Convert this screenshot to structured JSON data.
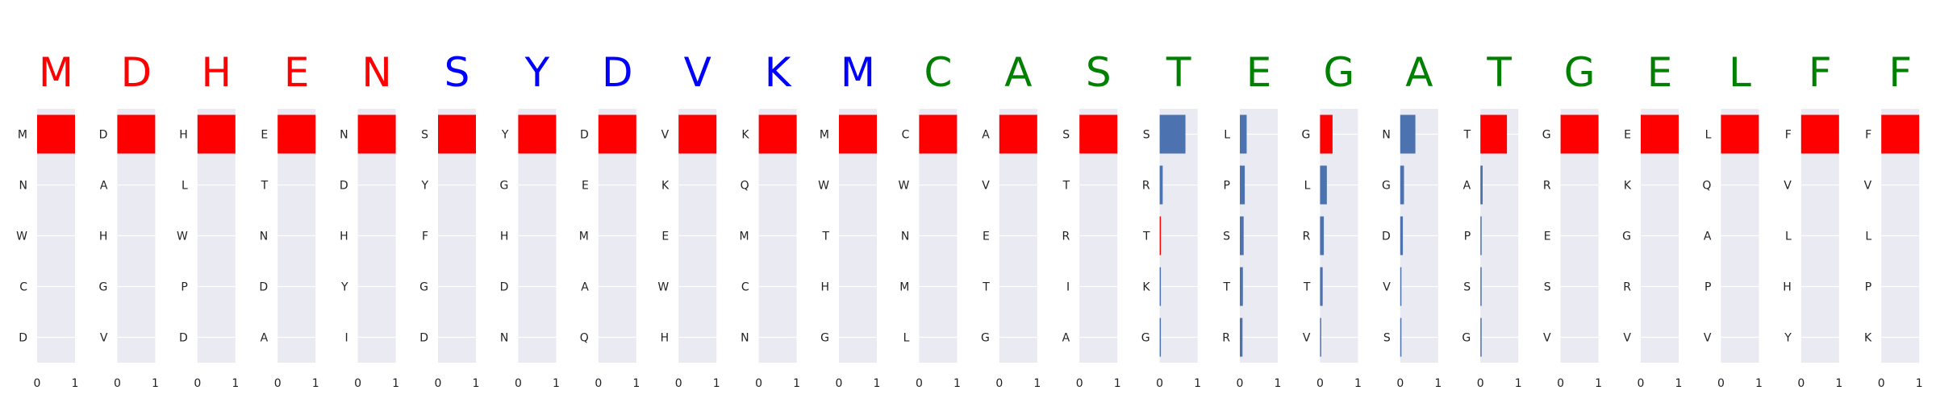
{
  "colors": {
    "panel_bg": "#eaeaf2",
    "grid": "#ffffff",
    "selected_bar": "#ff0000",
    "other_bar": "#4c72b0",
    "group_red": "#ff0000",
    "group_blue": "#0000ff",
    "group_green": "#008000"
  },
  "chart_data": {
    "type": "bar",
    "orientation": "horizontal",
    "xlim": [
      0,
      1
    ],
    "x_ticks": [
      "0",
      "1"
    ],
    "grid": true,
    "panels": [
      {
        "residue": "M",
        "color": "#ff0000",
        "candidates": [
          "M",
          "N",
          "W",
          "C",
          "D"
        ],
        "values": [
          1.0,
          0,
          0,
          0,
          0
        ],
        "selected": [
          true,
          false,
          false,
          false,
          false
        ]
      },
      {
        "residue": "D",
        "color": "#ff0000",
        "candidates": [
          "D",
          "A",
          "H",
          "G",
          "V"
        ],
        "values": [
          1.0,
          0,
          0,
          0,
          0
        ],
        "selected": [
          true,
          false,
          false,
          false,
          false
        ]
      },
      {
        "residue": "H",
        "color": "#ff0000",
        "candidates": [
          "H",
          "L",
          "W",
          "P",
          "D"
        ],
        "values": [
          1.0,
          0,
          0,
          0,
          0
        ],
        "selected": [
          true,
          false,
          false,
          false,
          false
        ]
      },
      {
        "residue": "E",
        "color": "#ff0000",
        "candidates": [
          "E",
          "T",
          "N",
          "D",
          "A"
        ],
        "values": [
          1.0,
          0,
          0,
          0,
          0
        ],
        "selected": [
          true,
          false,
          false,
          false,
          false
        ]
      },
      {
        "residue": "N",
        "color": "#ff0000",
        "candidates": [
          "N",
          "D",
          "H",
          "Y",
          "I"
        ],
        "values": [
          1.0,
          0,
          0,
          0,
          0
        ],
        "selected": [
          true,
          false,
          false,
          false,
          false
        ]
      },
      {
        "residue": "S",
        "color": "#0000ff",
        "candidates": [
          "S",
          "Y",
          "F",
          "G",
          "D"
        ],
        "values": [
          1.0,
          0,
          0,
          0,
          0
        ],
        "selected": [
          true,
          false,
          false,
          false,
          false
        ]
      },
      {
        "residue": "Y",
        "color": "#0000ff",
        "candidates": [
          "Y",
          "G",
          "H",
          "D",
          "N"
        ],
        "values": [
          1.0,
          0,
          0,
          0,
          0
        ],
        "selected": [
          true,
          false,
          false,
          false,
          false
        ]
      },
      {
        "residue": "D",
        "color": "#0000ff",
        "candidates": [
          "D",
          "E",
          "M",
          "A",
          "Q"
        ],
        "values": [
          1.0,
          0,
          0,
          0,
          0
        ],
        "selected": [
          true,
          false,
          false,
          false,
          false
        ]
      },
      {
        "residue": "V",
        "color": "#0000ff",
        "candidates": [
          "V",
          "K",
          "E",
          "W",
          "H"
        ],
        "values": [
          1.0,
          0,
          0,
          0,
          0
        ],
        "selected": [
          true,
          false,
          false,
          false,
          false
        ]
      },
      {
        "residue": "K",
        "color": "#0000ff",
        "candidates": [
          "K",
          "Q",
          "M",
          "C",
          "N"
        ],
        "values": [
          1.0,
          0,
          0,
          0,
          0
        ],
        "selected": [
          true,
          false,
          false,
          false,
          false
        ]
      },
      {
        "residue": "M",
        "color": "#0000ff",
        "candidates": [
          "M",
          "W",
          "T",
          "H",
          "G"
        ],
        "values": [
          1.0,
          0,
          0,
          0,
          0
        ],
        "selected": [
          true,
          false,
          false,
          false,
          false
        ]
      },
      {
        "residue": "C",
        "color": "#008000",
        "candidates": [
          "C",
          "W",
          "N",
          "M",
          "L"
        ],
        "values": [
          1.0,
          0,
          0,
          0,
          0
        ],
        "selected": [
          true,
          false,
          false,
          false,
          false
        ]
      },
      {
        "residue": "A",
        "color": "#008000",
        "candidates": [
          "A",
          "V",
          "E",
          "T",
          "G"
        ],
        "values": [
          1.0,
          0,
          0,
          0,
          0
        ],
        "selected": [
          true,
          false,
          false,
          false,
          false
        ]
      },
      {
        "residue": "S",
        "color": "#008000",
        "candidates": [
          "S",
          "T",
          "R",
          "I",
          "A"
        ],
        "values": [
          1.0,
          0,
          0,
          0,
          0
        ],
        "selected": [
          true,
          false,
          false,
          false,
          false
        ]
      },
      {
        "residue": "T",
        "color": "#008000",
        "candidates": [
          "S",
          "R",
          "T",
          "K",
          "G"
        ],
        "values": [
          0.68,
          0.08,
          0.02,
          0.01,
          0.01
        ],
        "selected": [
          false,
          false,
          true,
          false,
          false
        ]
      },
      {
        "residue": "E",
        "color": "#008000",
        "candidates": [
          "L",
          "P",
          "S",
          "T",
          "R"
        ],
        "values": [
          0.18,
          0.13,
          0.1,
          0.08,
          0.07
        ],
        "selected": [
          false,
          false,
          false,
          false,
          false
        ]
      },
      {
        "residue": "G",
        "color": "#008000",
        "candidates": [
          "G",
          "L",
          "R",
          "T",
          "V"
        ],
        "values": [
          0.33,
          0.18,
          0.1,
          0.07,
          0.03
        ],
        "selected": [
          true,
          false,
          false,
          false,
          false
        ]
      },
      {
        "residue": "A",
        "color": "#008000",
        "candidates": [
          "N",
          "G",
          "D",
          "V",
          "S"
        ],
        "values": [
          0.4,
          0.1,
          0.07,
          0.02,
          0.01
        ],
        "selected": [
          false,
          false,
          false,
          false,
          false
        ]
      },
      {
        "residue": "T",
        "color": "#008000",
        "candidates": [
          "T",
          "A",
          "P",
          "S",
          "G"
        ],
        "values": [
          0.7,
          0.06,
          0.02,
          0.02,
          0.01
        ],
        "selected": [
          true,
          false,
          false,
          false,
          false
        ]
      },
      {
        "residue": "G",
        "color": "#008000",
        "candidates": [
          "G",
          "R",
          "E",
          "S",
          "V"
        ],
        "values": [
          1.0,
          0,
          0,
          0,
          0
        ],
        "selected": [
          true,
          false,
          false,
          false,
          false
        ]
      },
      {
        "residue": "E",
        "color": "#008000",
        "candidates": [
          "E",
          "K",
          "G",
          "R",
          "V"
        ],
        "values": [
          1.0,
          0,
          0,
          0,
          0
        ],
        "selected": [
          true,
          false,
          false,
          false,
          false
        ]
      },
      {
        "residue": "L",
        "color": "#008000",
        "candidates": [
          "L",
          "Q",
          "A",
          "P",
          "V"
        ],
        "values": [
          1.0,
          0,
          0,
          0,
          0
        ],
        "selected": [
          true,
          false,
          false,
          false,
          false
        ]
      },
      {
        "residue": "F",
        "color": "#008000",
        "candidates": [
          "F",
          "V",
          "L",
          "H",
          "Y"
        ],
        "values": [
          1.0,
          0,
          0,
          0,
          0
        ],
        "selected": [
          true,
          false,
          false,
          false,
          false
        ]
      },
      {
        "residue": "F",
        "color": "#008000",
        "candidates": [
          "F",
          "V",
          "L",
          "P",
          "K"
        ],
        "values": [
          1.0,
          0,
          0,
          0,
          0
        ],
        "selected": [
          true,
          false,
          false,
          false,
          false
        ]
      }
    ]
  }
}
